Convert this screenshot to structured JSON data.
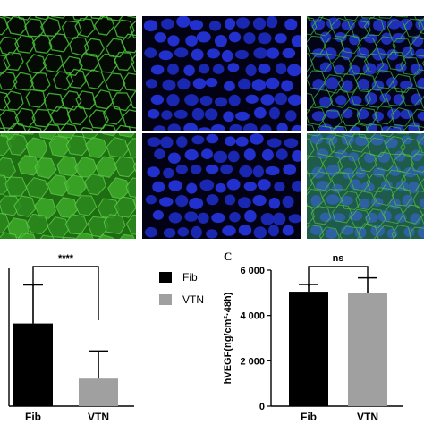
{
  "panel_letter": "C",
  "legend": [
    {
      "label": "Fib",
      "color": "#000000"
    },
    {
      "label": "VTN",
      "color": "#a0a0a0"
    }
  ],
  "microscopy": {
    "rows": 2,
    "cols": 3,
    "channels": [
      {
        "name": "membrane",
        "color": "#2ecc40"
      },
      {
        "name": "nuclei",
        "color": "#1f2bd6"
      },
      {
        "name": "merge",
        "color": "#1f6a8c"
      }
    ]
  },
  "chart_data": [
    {
      "type": "bar",
      "categories": [
        "Fib",
        "VTN"
      ],
      "values": [
        0.6,
        0.2
      ],
      "errors": [
        0.28,
        0.2
      ],
      "colors": [
        "#000000",
        "#a0a0a0"
      ],
      "ylim": [
        0,
        1
      ],
      "significance": {
        "label": "****",
        "pair": [
          0,
          1
        ]
      },
      "title": "",
      "xlabel": "",
      "ylabel": ""
    },
    {
      "type": "bar",
      "categories": [
        "Fib",
        "VTN"
      ],
      "values": [
        5050,
        4980
      ],
      "errors": [
        320,
        680
      ],
      "colors": [
        "#000000",
        "#a0a0a0"
      ],
      "ylim": [
        0,
        6000
      ],
      "yticks": [
        0,
        2000,
        4000,
        6000
      ],
      "ytick_labels": [
        "0",
        "2 000",
        "4 000",
        "6 000"
      ],
      "ylabel": "hVEGF(ng/cm²·48h)",
      "significance": {
        "label": "ns",
        "pair": [
          0,
          1
        ]
      },
      "title": "",
      "xlabel": ""
    }
  ]
}
